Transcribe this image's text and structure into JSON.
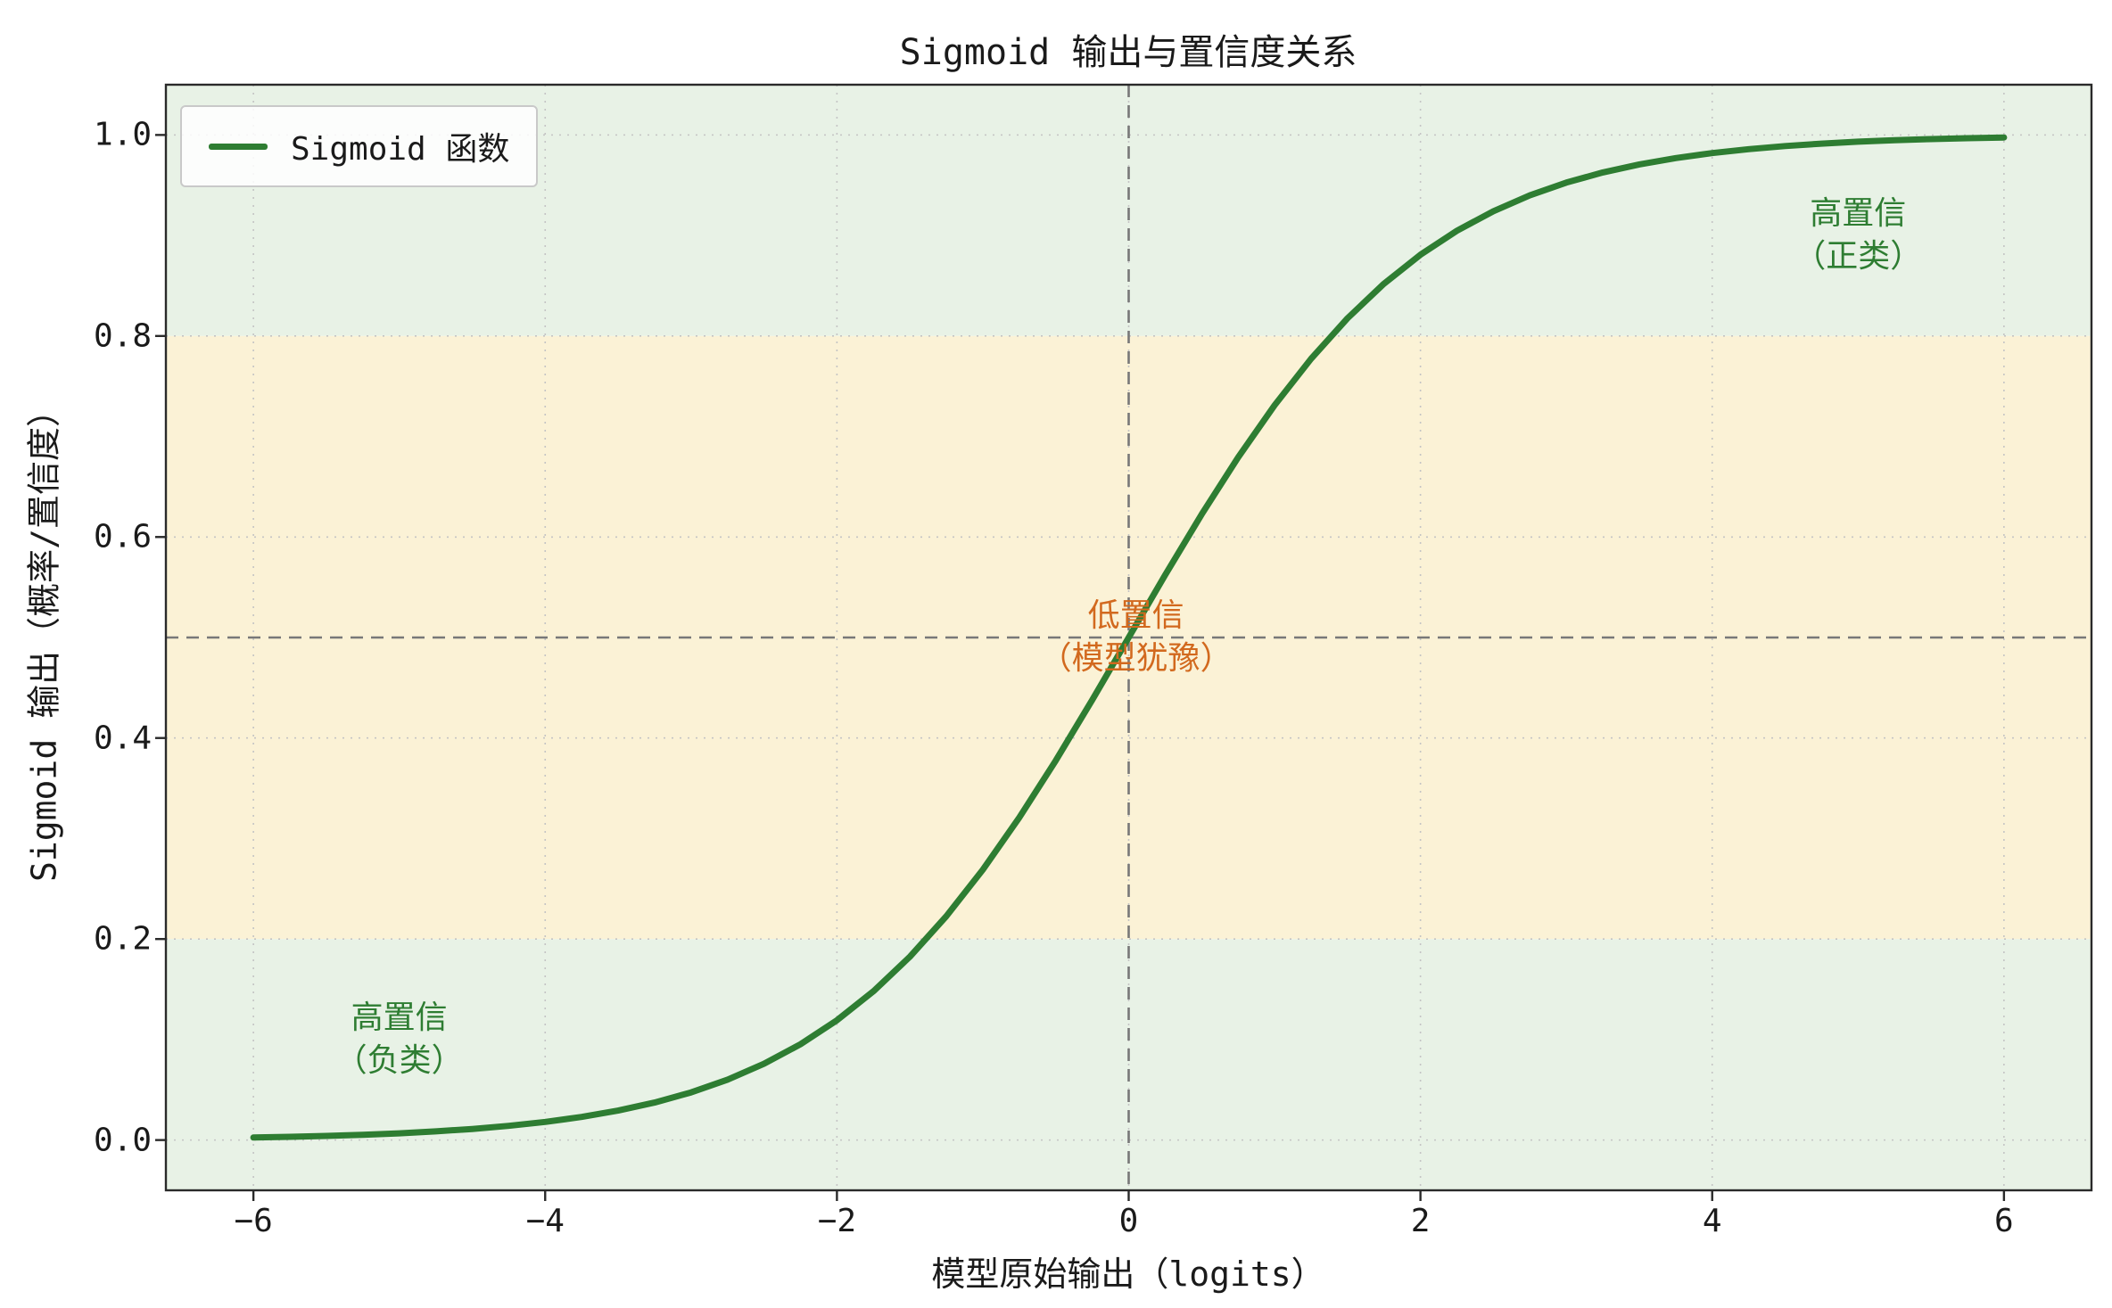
{
  "chart_data": {
    "type": "line",
    "title": "Sigmoid 输出与置信度关系",
    "xlabel": "模型原始输出（logits）",
    "ylabel": "Sigmoid 输出（概率/置信度）",
    "xlim": [
      -6.6,
      6.6
    ],
    "ylim": [
      -0.05,
      1.05
    ],
    "grid": true,
    "x_ticks": [
      -6,
      -4,
      -2,
      0,
      2,
      4,
      6
    ],
    "x_tick_labels": [
      "−6",
      "−4",
      "−2",
      "0",
      "2",
      "4",
      "6"
    ],
    "y_ticks": [
      0.0,
      0.2,
      0.4,
      0.6,
      0.8,
      1.0
    ],
    "y_tick_labels": [
      "0.0",
      "0.2",
      "0.4",
      "0.6",
      "0.8",
      "1.0"
    ],
    "legend": {
      "label": "Sigmoid 函数",
      "position": "upper left"
    },
    "style": {
      "grid_color": "#c4c4c4",
      "ref_color": "#787878",
      "spine_color": "#2a2a2a"
    },
    "bands": [
      {
        "name": "band-high-confidence-positive",
        "y0": 0.8,
        "y1": 1.05,
        "color": "#e8f2e6"
      },
      {
        "name": "band-low-confidence",
        "y0": 0.2,
        "y1": 0.8,
        "color": "#fbf2d6"
      },
      {
        "name": "band-high-confidence-negative",
        "y0": -0.05,
        "y1": 0.2,
        "color": "#e8f2e6"
      }
    ],
    "reference_lines": [
      {
        "orientation": "vertical",
        "value": 0.0
      },
      {
        "orientation": "horizontal",
        "value": 0.5
      }
    ],
    "annotations": [
      {
        "name": "annotation-high-confidence-positive",
        "text": "高置信\n（正类）",
        "x": 5.0,
        "y": 0.9,
        "color": "#2e7d32"
      },
      {
        "name": "annotation-low-confidence",
        "text": "低置信\n（模型犹豫）",
        "x": 0.05,
        "y": 0.5,
        "color": "#d2691e"
      },
      {
        "name": "annotation-high-confidence-negative",
        "text": "高置信\n（负类）",
        "x": -5.0,
        "y": 0.1,
        "color": "#2e7d32"
      }
    ],
    "series": [
      {
        "name": "Sigmoid 函数",
        "color": "#2e7d32",
        "x": [
          -6,
          -5.75,
          -5.5,
          -5.25,
          -5,
          -4.75,
          -4.5,
          -4.25,
          -4,
          -3.75,
          -3.5,
          -3.25,
          -3,
          -2.75,
          -2.5,
          -2.25,
          -2,
          -1.75,
          -1.5,
          -1.25,
          -1,
          -0.75,
          -0.5,
          -0.25,
          0,
          0.25,
          0.5,
          0.75,
          1,
          1.25,
          1.5,
          1.75,
          2,
          2.25,
          2.5,
          2.75,
          3,
          3.25,
          3.5,
          3.75,
          4,
          4.25,
          4.5,
          4.75,
          5,
          5.25,
          5.5,
          5.75,
          6
        ],
        "y": [
          0.0025,
          0.0032,
          0.0041,
          0.0052,
          0.0067,
          0.0086,
          0.011,
          0.0141,
          0.018,
          0.023,
          0.0293,
          0.0373,
          0.0474,
          0.0601,
          0.0759,
          0.0953,
          0.1192,
          0.148,
          0.1824,
          0.2227,
          0.2689,
          0.3208,
          0.3775,
          0.4378,
          0.5,
          0.5622,
          0.6225,
          0.6792,
          0.7311,
          0.7773,
          0.8176,
          0.852,
          0.8808,
          0.9047,
          0.9241,
          0.9399,
          0.9526,
          0.9627,
          0.9707,
          0.977,
          0.982,
          0.9859,
          0.989,
          0.9914,
          0.9933,
          0.9948,
          0.9959,
          0.9968,
          0.9975
        ]
      }
    ]
  }
}
